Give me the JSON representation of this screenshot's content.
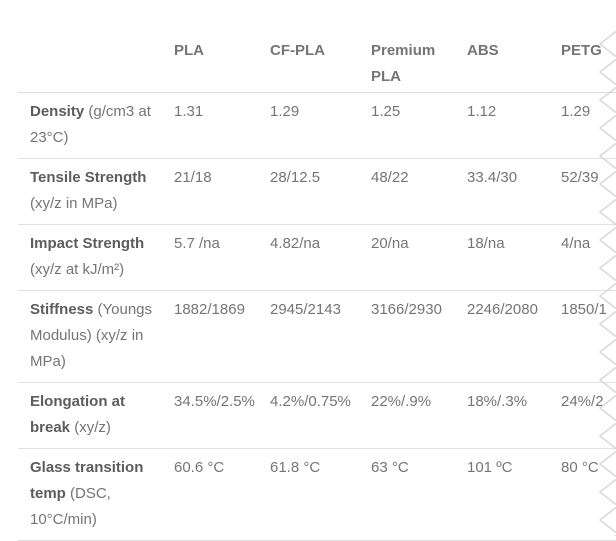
{
  "table": {
    "corner_label": "",
    "columns": [
      "PLA",
      "CF-PLA",
      "Premium PLA",
      "ABS",
      "PETG"
    ],
    "rows": [
      {
        "property": "Density",
        "property_detail": " (g/cm3 at 23°C)",
        "values": [
          "1.31",
          "1.29",
          "1.25",
          "1.12",
          "1.29"
        ]
      },
      {
        "property": "Tensile Strength",
        "property_detail": " (xy/z in MPa)",
        "values": [
          "21/18",
          "28/12.5",
          "48/22",
          "33.4/30",
          "52/39"
        ]
      },
      {
        "property": "Impact Strength",
        "property_detail": " (xy/z at kJ/m²)",
        "values": [
          "5.7 /na",
          "4.82/na",
          "20/na",
          "18/na",
          "4/na"
        ]
      },
      {
        "property": "Stiffness",
        "property_detail": " (Youngs Modulus) (xy/z in MPa)",
        "values": [
          "1882/1869",
          "2945/2143",
          "3166/2930",
          "2246/2080",
          "1850/1"
        ]
      },
      {
        "property": "Elongation at break",
        "property_detail": " (xy/z)",
        "values": [
          "34.5%/2.5%",
          "4.2%/0.75%",
          "22%/.9%",
          "18%/.3%",
          "24%/2"
        ]
      },
      {
        "property": "Glass transition temp",
        "property_detail": " (DSC, 10°C/min)",
        "values": [
          "60.6 °C",
          "61.8 °C",
          "63 °C",
          "101 ºC",
          "80 °C"
        ]
      }
    ]
  },
  "colors": {
    "text": "#757575",
    "label_bold_text": "#5d5d5d",
    "row_divider": "#e1e1e1",
    "torn_edge": "#d8d8d8",
    "background": "#ffffff"
  }
}
